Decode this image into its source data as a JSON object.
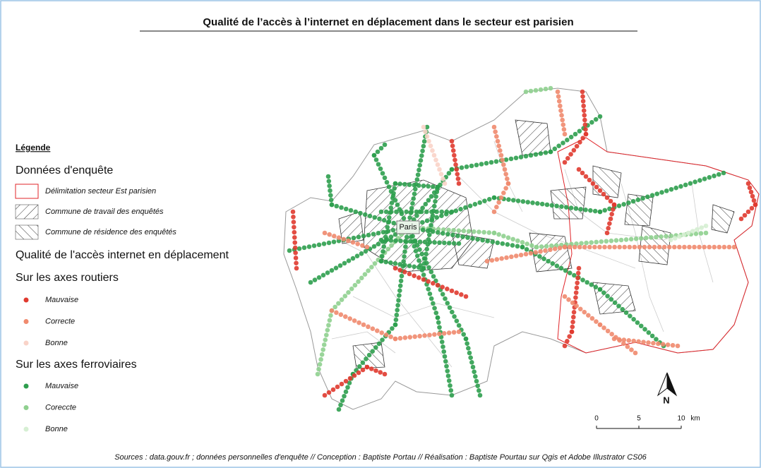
{
  "title": "Qualité de l’accès à l’internet en déplacement dans le secteur est parisien",
  "legend": {
    "heading": "Légende",
    "survey": {
      "title": "Données d'enquête",
      "items": [
        "Délimitation secteur Est parisien",
        "Commune de travail des enquêtés",
        "Commune de résidence des enquêtés"
      ]
    },
    "quality": {
      "title": "Qualité de l'accès internet en déplacement",
      "road": {
        "title": "Sur les axes routiers",
        "items": [
          {
            "label": "Mauvaise",
            "color": "#e03a2f"
          },
          {
            "label": "Correcte",
            "color": "#f08a6e"
          },
          {
            "label": "Bonne",
            "color": "#f9d3c8"
          }
        ]
      },
      "rail": {
        "title": "Sur les axes ferroviaires",
        "items": [
          {
            "label": "Mauvaise",
            "color": "#2e9e4e"
          },
          {
            "label": "Coreccte",
            "color": "#8fd08f"
          },
          {
            "label": "Bonne",
            "color": "#d6efd3"
          }
        ]
      }
    }
  },
  "map": {
    "city_label": "Paris",
    "north": "N"
  },
  "scale": {
    "ticks": [
      0,
      5,
      10
    ],
    "unit": "km"
  },
  "sources": "Sources : data.gouv.fr ; données personnelles d'enquête // Conception : Baptiste Portau // Réalisation : Baptiste Pourtau sur Qgis et Adobe Illustrator CS06"
}
